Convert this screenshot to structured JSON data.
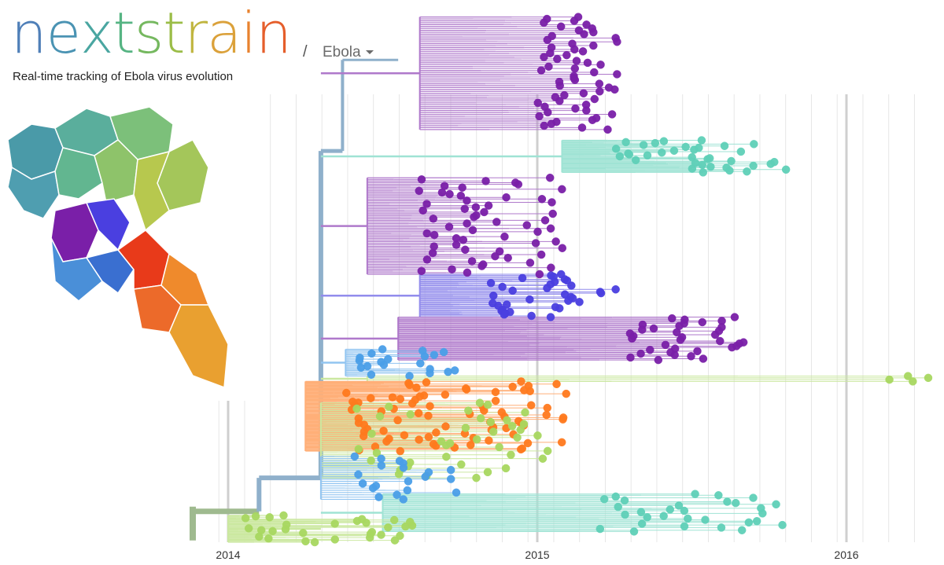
{
  "header": {
    "logo_letters": [
      "n",
      "e",
      "x",
      "t",
      "s",
      "t",
      "r",
      "a",
      "i",
      "n"
    ],
    "logo_colors": [
      "#4f7fb8",
      "#4a93b3",
      "#4aa6a1",
      "#56b483",
      "#75b85f",
      "#9bbd48",
      "#c0b53f",
      "#dba13a",
      "#e8832f",
      "#e55e2b"
    ],
    "separator": "/",
    "dataset": "Ebola",
    "tagline": "Real-time tracking of Ebola virus evolution"
  },
  "colors": {
    "trunk": "#8fb0cb",
    "purple": "#7a1fa8",
    "blue_violet": "#4a3fe0",
    "sky_blue": "#4a9fe8",
    "teal": "#5fd0b8",
    "light_green": "#a8d860",
    "orange": "#ff7a1e",
    "red": "#e83a1a",
    "gridline": "#e6e6e6"
  },
  "chart_data": {
    "type": "phylogenetic-tree",
    "xlabel": "",
    "xlim": [
      2013.97,
      2016.26
    ],
    "x_ticks": [
      "2014",
      "2015",
      "2016"
    ],
    "legend": "map (Guinea / Sierra Leone / Liberia regions)",
    "clades": [
      {
        "color": "purple",
        "root_date": 2014.62,
        "date_range": [
          2015.0,
          2015.27
        ],
        "rows": [
          0.02,
          0.23
        ],
        "tips": 60
      },
      {
        "color": "teal",
        "root_date": 2015.08,
        "date_range": [
          2015.25,
          2015.82
        ],
        "rows": [
          0.25,
          0.31
        ],
        "tips": 35
      },
      {
        "color": "purple",
        "root_date": 2014.45,
        "date_range": [
          2014.6,
          2015.1
        ],
        "rows": [
          0.32,
          0.5
        ],
        "tips": 60
      },
      {
        "color": "blue_violet",
        "root_date": 2014.62,
        "date_range": [
          2014.85,
          2015.27
        ],
        "rows": [
          0.5,
          0.58
        ],
        "tips": 35
      },
      {
        "color": "purple",
        "root_date": 2014.55,
        "date_range": [
          2015.3,
          2015.68
        ],
        "rows": [
          0.58,
          0.66
        ],
        "tips": 35
      },
      {
        "color": "sky_blue",
        "root_date": 2014.38,
        "date_range": [
          2014.42,
          2014.75
        ],
        "rows": [
          0.64,
          0.69
        ],
        "tips": 20
      },
      {
        "color": "light_green",
        "root_date": 2014.45,
        "date_range": [
          2016.1,
          2016.27
        ],
        "rows": [
          0.69,
          0.7
        ],
        "tips": 4
      },
      {
        "color": "orange",
        "root_date": 2014.25,
        "date_range": [
          2014.35,
          2015.1
        ],
        "rows": [
          0.7,
          0.83
        ],
        "tips": 80
      },
      {
        "color": "light_green",
        "root_date": 2014.3,
        "date_range": [
          2014.4,
          2015.05
        ],
        "rows": [
          0.74,
          0.88
        ],
        "tips": 40
      },
      {
        "color": "sky_blue",
        "root_date": 2014.3,
        "date_range": [
          2014.4,
          2014.75
        ],
        "rows": [
          0.84,
          0.92
        ],
        "tips": 20
      },
      {
        "color": "teal",
        "root_date": 2014.5,
        "date_range": [
          2015.2,
          2015.8
        ],
        "rows": [
          0.91,
          0.98
        ],
        "tips": 30
      },
      {
        "color": "light_green",
        "root_date": 2014.0,
        "date_range": [
          2014.05,
          2014.6
        ],
        "rows": [
          0.95,
          1.0
        ],
        "tips": 30
      }
    ]
  },
  "map_regions": [
    {
      "name": "r1",
      "color": "#4a9aa8"
    },
    {
      "name": "r2",
      "color": "#4f9eb0"
    },
    {
      "name": "r3",
      "color": "#5aae9c"
    },
    {
      "name": "r4",
      "color": "#62b690"
    },
    {
      "name": "r5",
      "color": "#7cc07a"
    },
    {
      "name": "r6",
      "color": "#8ec36a"
    },
    {
      "name": "r7",
      "color": "#a4c65a"
    },
    {
      "name": "r8",
      "color": "#b7c84e"
    },
    {
      "name": "r9",
      "color": "#7a1fa8"
    },
    {
      "name": "r10",
      "color": "#4a3fe0"
    },
    {
      "name": "r11",
      "color": "#4a8fd8"
    },
    {
      "name": "r12",
      "color": "#3a6fd0"
    },
    {
      "name": "r13",
      "color": "#e83a1a"
    },
    {
      "name": "r14",
      "color": "#ec6a2a"
    },
    {
      "name": "r15",
      "color": "#ef8a2c"
    },
    {
      "name": "r16",
      "color": "#e9a030"
    }
  ]
}
